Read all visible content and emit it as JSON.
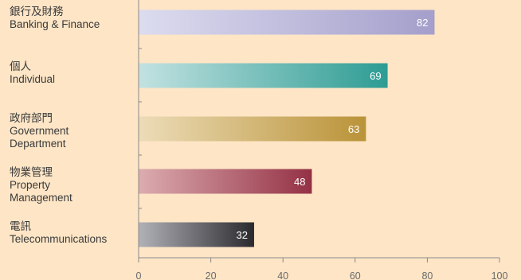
{
  "chart_data": {
    "type": "bar",
    "orientation": "horizontal",
    "categories": [
      {
        "zh": "銀行及財務",
        "en": [
          "Banking & Finance"
        ]
      },
      {
        "zh": "個人",
        "en": [
          "Individual"
        ]
      },
      {
        "zh": "政府部門",
        "en": [
          "Government",
          "Department"
        ]
      },
      {
        "zh": "物業管理",
        "en": [
          "Property",
          "Management"
        ]
      },
      {
        "zh": "電訊",
        "en": [
          "Telecommunications"
        ]
      }
    ],
    "values": [
      82,
      69,
      63,
      48,
      32
    ],
    "xlim": [
      0,
      100
    ],
    "xticks": [
      "0",
      "20",
      "40",
      "60",
      "80",
      "100"
    ],
    "grid": false,
    "colors": [
      [
        "#dcdcef",
        "#a49fcb"
      ],
      [
        "#c2e2e1",
        "#2d9c93"
      ],
      [
        "#ecdcb8",
        "#ba9338"
      ],
      [
        "#dcacb0",
        "#943145"
      ],
      [
        "#b1b2b8",
        "#2a2a2e"
      ]
    ]
  }
}
